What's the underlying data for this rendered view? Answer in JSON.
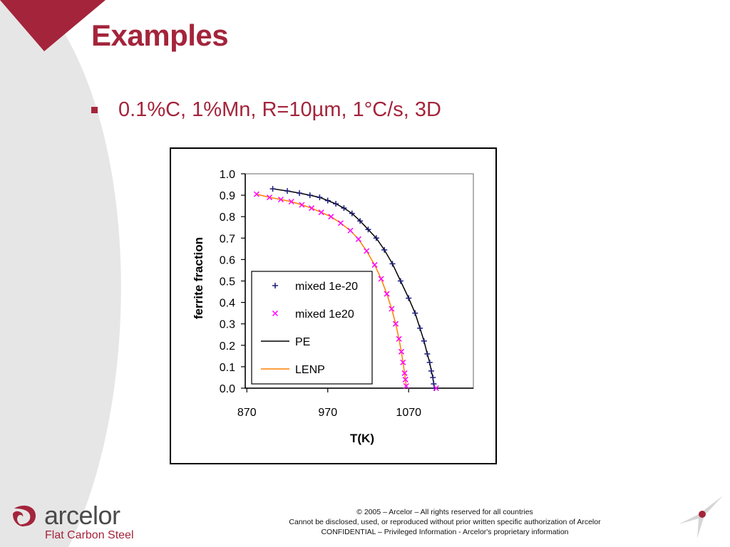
{
  "slide": {
    "title": "Examples",
    "bullet": "0.1%C, 1%Mn, R=10µm, 1°C/s, 3D"
  },
  "brand": {
    "name": "arcelor",
    "subtitle": "Flat Carbon Steel",
    "accent_color": "#a4243b",
    "logo_icon": "arcelor-swirl-logo"
  },
  "footer": {
    "line1": "© 2005 – Arcelor – All rights reserved for all countries",
    "line2": "Cannot be disclosed, used, or reproduced without prior written specific authorization of Arcelor",
    "line3": "CONFIDENTIAL – Privileged Information - Arcelor's proprietary information"
  },
  "chart_data": {
    "type": "scatter",
    "title": "",
    "xlabel": "T(K)",
    "ylabel": "ferrite fraction",
    "xlim": [
      868,
      1150
    ],
    "ylim": [
      0,
      1.0
    ],
    "x_ticks": [
      870,
      970,
      1070
    ],
    "x_tick_labels": [
      "870",
      "970",
      "1070"
    ],
    "y_ticks": [
      0,
      0.1,
      0.2,
      0.3,
      0.4,
      0.5,
      0.6,
      0.7,
      0.8,
      0.9,
      1.0
    ],
    "y_tick_labels": [
      "0.0",
      "0.1",
      "0.2",
      "0.3",
      "0.4",
      "0.5",
      "0.6",
      "0.7",
      "0.8",
      "0.9",
      "1.0"
    ],
    "grid": false,
    "legend_position": "lower-left inside",
    "series": [
      {
        "name": "mixed 1e-20",
        "style": "marker",
        "marker": "plus",
        "color": "#1a1a78",
        "x": [
          902,
          920,
          935,
          948,
          960,
          970,
          980,
          990,
          1000,
          1010,
          1020,
          1030,
          1040,
          1050,
          1060,
          1070,
          1078,
          1084,
          1089,
          1093,
          1096,
          1098,
          1100,
          1101,
          1102
        ],
        "y": [
          0.93,
          0.92,
          0.91,
          0.9,
          0.89,
          0.875,
          0.86,
          0.84,
          0.815,
          0.78,
          0.74,
          0.7,
          0.645,
          0.58,
          0.5,
          0.42,
          0.35,
          0.28,
          0.22,
          0.16,
          0.12,
          0.08,
          0.05,
          0.02,
          0.0
        ]
      },
      {
        "name": "mixed 1e20",
        "style": "marker",
        "marker": "x",
        "color": "#ff00ff",
        "x": [
          882,
          898,
          912,
          925,
          938,
          950,
          962,
          974,
          986,
          998,
          1008,
          1018,
          1028,
          1036,
          1043,
          1049,
          1054,
          1058,
          1061,
          1063,
          1065,
          1066,
          1067,
          1104
        ],
        "y": [
          0.905,
          0.89,
          0.88,
          0.87,
          0.855,
          0.84,
          0.82,
          0.8,
          0.77,
          0.735,
          0.695,
          0.64,
          0.575,
          0.51,
          0.44,
          0.37,
          0.3,
          0.23,
          0.17,
          0.12,
          0.07,
          0.04,
          0.01,
          0.0
        ]
      },
      {
        "name": "PE",
        "style": "line",
        "color": "#000000",
        "x": [
          902,
          920,
          935,
          948,
          960,
          970,
          980,
          990,
          1000,
          1010,
          1020,
          1030,
          1040,
          1050,
          1060,
          1070,
          1078,
          1084,
          1089,
          1093,
          1096,
          1098,
          1100,
          1101,
          1102
        ],
        "y": [
          0.93,
          0.92,
          0.91,
          0.9,
          0.89,
          0.875,
          0.86,
          0.84,
          0.815,
          0.78,
          0.74,
          0.7,
          0.645,
          0.58,
          0.5,
          0.42,
          0.35,
          0.28,
          0.22,
          0.16,
          0.12,
          0.08,
          0.05,
          0.02,
          0.0
        ]
      },
      {
        "name": "LENP",
        "style": "line",
        "color": "#ff7f00",
        "x": [
          882,
          898,
          912,
          925,
          938,
          950,
          962,
          974,
          986,
          998,
          1008,
          1018,
          1028,
          1036,
          1043,
          1049,
          1054,
          1058,
          1061,
          1063,
          1065,
          1066,
          1067
        ],
        "y": [
          0.905,
          0.89,
          0.88,
          0.87,
          0.855,
          0.84,
          0.82,
          0.8,
          0.77,
          0.735,
          0.695,
          0.64,
          0.575,
          0.51,
          0.44,
          0.37,
          0.3,
          0.23,
          0.17,
          0.12,
          0.07,
          0.04,
          0.01
        ]
      }
    ]
  }
}
